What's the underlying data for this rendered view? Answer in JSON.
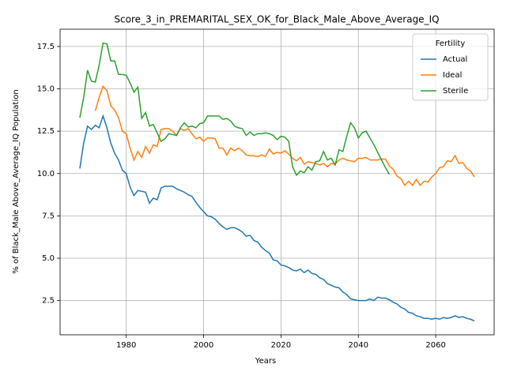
{
  "chart_data": {
    "type": "line",
    "title": "Score_3_in_PREMARITAL_SEX_OK_for_Black_Male_Above_Average_IQ",
    "x_label": "Years",
    "y_label": "% of Black_Male Above_Average_IQ Population",
    "legend_title": "Fertility",
    "legend_position": "upper right",
    "grid": true,
    "x": [
      1968,
      1969,
      1970,
      1971,
      1972,
      1973,
      1974,
      1975,
      1976,
      1977,
      1978,
      1979,
      1980,
      1981,
      1982,
      1983,
      1984,
      1985,
      1986,
      1987,
      1988,
      1989,
      1990,
      1991,
      1992,
      1993,
      1994,
      1995,
      1996,
      1997,
      1998,
      1999,
      2000,
      2001,
      2002,
      2003,
      2004,
      2005,
      2006,
      2007,
      2008,
      2009,
      2010,
      2011,
      2012,
      2013,
      2014,
      2015,
      2016,
      2017,
      2018,
      2019,
      2020,
      2021,
      2022,
      2023,
      2024,
      2025,
      2026,
      2027,
      2028,
      2029,
      2030,
      2031,
      2032,
      2033,
      2034,
      2035,
      2036,
      2037,
      2038,
      2039,
      2040,
      2041,
      2042,
      2043,
      2044,
      2045,
      2046,
      2047,
      2048,
      2049,
      2050,
      2051,
      2052,
      2053,
      2054,
      2055,
      2056,
      2057,
      2058,
      2059,
      2060,
      2061,
      2062,
      2063,
      2064,
      2065,
      2066,
      2067,
      2068,
      2069,
      2070
    ],
    "series": [
      {
        "name": "Actual",
        "color": "#1f77b4",
        "values": [
          10.3,
          11.8,
          12.8,
          12.6,
          12.85,
          12.7,
          13.4,
          12.7,
          11.8,
          11.2,
          10.8,
          10.2,
          10.0,
          9.2,
          8.7,
          9.0,
          8.95,
          8.9,
          8.25,
          8.55,
          8.45,
          9.15,
          9.25,
          9.25,
          9.25,
          9.1,
          9.0,
          8.9,
          8.75,
          8.65,
          8.3,
          8.0,
          7.75,
          7.5,
          7.45,
          7.3,
          7.05,
          6.85,
          6.7,
          6.8,
          6.8,
          6.7,
          6.55,
          6.3,
          6.35,
          6.05,
          5.95,
          5.65,
          5.45,
          5.3,
          4.9,
          4.85,
          4.6,
          4.55,
          4.45,
          4.3,
          4.25,
          4.35,
          4.15,
          4.3,
          4.1,
          4.05,
          3.85,
          3.75,
          3.5,
          3.4,
          3.3,
          3.25,
          3.0,
          2.85,
          2.6,
          2.55,
          2.5,
          2.5,
          2.5,
          2.6,
          2.5,
          2.7,
          2.65,
          2.65,
          2.55,
          2.4,
          2.3,
          2.1,
          2.0,
          1.8,
          1.75,
          1.6,
          1.55,
          1.45,
          1.45,
          1.4,
          1.45,
          1.4,
          1.5,
          1.45,
          1.5,
          1.6,
          1.5,
          1.55,
          1.45,
          1.4,
          1.3
        ]
      },
      {
        "name": "Ideal",
        "color": "#ff7f0e",
        "values": [
          null,
          null,
          null,
          null,
          13.7,
          14.5,
          15.15,
          14.9,
          14.0,
          13.75,
          13.3,
          12.5,
          12.35,
          11.5,
          10.8,
          11.3,
          10.95,
          11.6,
          11.2,
          11.7,
          11.6,
          12.6,
          12.65,
          12.65,
          12.5,
          12.25,
          12.65,
          12.55,
          12.65,
          12.35,
          12.05,
          12.15,
          11.9,
          12.1,
          12.1,
          12.05,
          11.5,
          11.5,
          11.1,
          11.5,
          11.35,
          11.5,
          11.35,
          11.1,
          11.05,
          11.05,
          11.0,
          11.1,
          11.0,
          11.45,
          11.15,
          11.25,
          11.2,
          11.35,
          11.15,
          10.9,
          10.75,
          10.95,
          10.55,
          10.7,
          10.65,
          10.6,
          10.5,
          10.6,
          10.4,
          10.6,
          10.55,
          10.8,
          10.9,
          10.8,
          10.75,
          10.7,
          10.9,
          10.9,
          10.95,
          10.8,
          10.8,
          10.8,
          10.85,
          10.85,
          10.45,
          10.25,
          9.85,
          9.7,
          9.3,
          9.55,
          9.3,
          9.65,
          9.3,
          9.55,
          9.5,
          9.8,
          10.0,
          10.35,
          10.4,
          10.75,
          10.7,
          11.05,
          10.6,
          10.65,
          10.3,
          10.15,
          9.8
        ]
      },
      {
        "name": "Sterile",
        "color": "#2ca02c",
        "values": [
          13.3,
          14.5,
          16.1,
          15.45,
          15.4,
          16.4,
          17.7,
          17.65,
          16.65,
          16.65,
          15.85,
          15.85,
          15.8,
          15.35,
          14.8,
          15.1,
          13.25,
          13.6,
          12.8,
          12.9,
          12.4,
          11.9,
          12.05,
          12.35,
          12.3,
          12.25,
          12.7,
          13.0,
          12.75,
          12.8,
          12.7,
          12.95,
          13.0,
          13.4,
          13.4,
          13.4,
          13.4,
          13.2,
          13.25,
          13.1,
          12.8,
          12.7,
          12.65,
          12.25,
          12.45,
          12.25,
          12.35,
          12.35,
          12.4,
          12.35,
          12.25,
          12.0,
          12.2,
          12.15,
          11.9,
          10.4,
          9.9,
          10.15,
          10.05,
          10.4,
          10.2,
          10.7,
          10.75,
          11.3,
          10.8,
          10.9,
          10.5,
          11.4,
          11.3,
          12.2,
          13.0,
          12.7,
          12.1,
          12.4,
          12.5,
          12.1,
          11.7,
          11.25,
          10.8,
          10.35,
          9.95,
          null,
          null,
          null,
          null,
          null,
          null,
          null,
          null,
          null,
          null,
          null,
          null,
          null,
          null,
          null,
          null,
          null,
          null,
          null,
          null,
          null,
          null
        ]
      }
    ],
    "xlim": [
      1962.9,
      2075.1
    ],
    "xticks": [
      1980,
      2000,
      2020,
      2040,
      2060
    ],
    "ylim": [
      0.48,
      18.52
    ],
    "yticks": [
      2.5,
      {
        "value": 5,
        "label": "5.0"
      },
      7.5,
      {
        "value": 10,
        "label": "10.0"
      },
      12.5,
      {
        "value": 15,
        "label": "15.0"
      },
      17.5
    ]
  }
}
